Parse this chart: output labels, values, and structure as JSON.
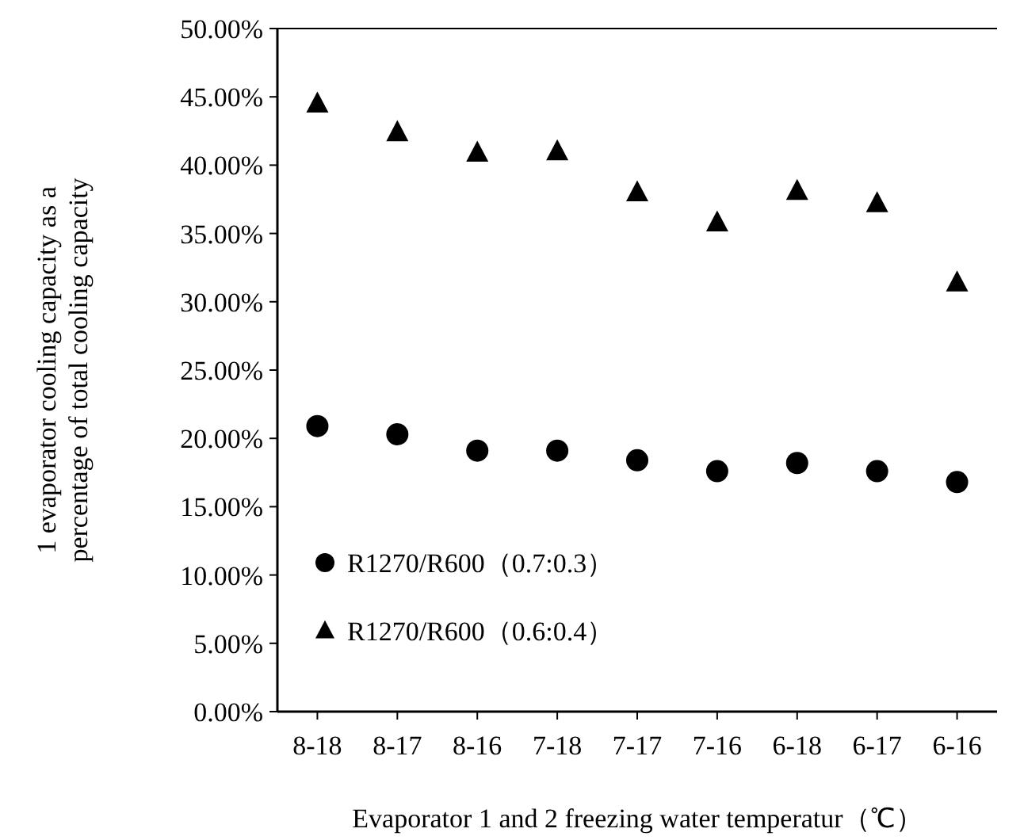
{
  "chart_data": {
    "type": "scatter",
    "xlabel": "Evaporator 1 and 2 freezing water temperatur（℃）",
    "ylabel": "1 evaporator cooling capacity as a\npercentage of total cooling capacity",
    "categories": [
      "8-18",
      "8-17",
      "8-16",
      "7-18",
      "7-17",
      "7-16",
      "6-18",
      "6-17",
      "6-16"
    ],
    "series": [
      {
        "name": "R1270/R600（0.7:0.3）",
        "color": "#000000",
        "marker": "circle",
        "values": [
          20.9,
          20.3,
          19.1,
          19.1,
          18.4,
          17.6,
          18.2,
          17.6,
          16.8
        ]
      },
      {
        "name": "R1270/R600（0.6:0.4）",
        "color": "#000000",
        "marker": "triangle",
        "values": [
          44.5,
          42.4,
          40.9,
          41.0,
          38.0,
          35.8,
          38.1,
          37.2,
          31.4
        ]
      }
    ],
    "ylim": [
      0,
      50
    ],
    "yticks": [
      {
        "value": 0,
        "label": "0.00%"
      },
      {
        "value": 5,
        "label": "5.00%"
      },
      {
        "value": 10,
        "label": "10.00%"
      },
      {
        "value": 15,
        "label": "15.00%"
      },
      {
        "value": 20,
        "label": "20.00%"
      },
      {
        "value": 25,
        "label": "25.00%"
      },
      {
        "value": 30,
        "label": "30.00%"
      },
      {
        "value": 35,
        "label": "35.00%"
      },
      {
        "value": 40,
        "label": "40.00%"
      },
      {
        "value": 45,
        "label": "45.00%"
      },
      {
        "value": 50,
        "label": "50.00%"
      }
    ],
    "grid": false,
    "legend": "bottom left"
  }
}
